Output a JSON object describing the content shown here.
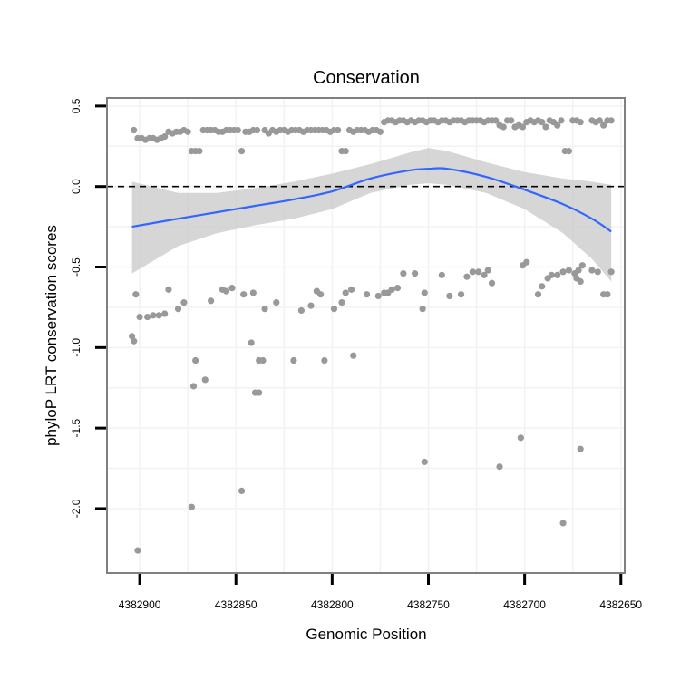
{
  "chart_data": {
    "type": "scatter",
    "title": "Conservation",
    "xlabel": "Genomic Position",
    "ylabel": "phyloP LRT conservation scores",
    "x_reversed": true,
    "xlim": [
      4382917,
      4382648
    ],
    "ylim": [
      -2.4,
      0.55
    ],
    "x_ticks": [
      4382900,
      4382850,
      4382800,
      4382750,
      4382700,
      4382650
    ],
    "x_tick_labels": [
      "4382900",
      "4382850",
      "4382800",
      "4382750",
      "4382700",
      "4382650"
    ],
    "y_ticks": [
      0.5,
      0.0,
      -0.5,
      -1.0,
      -1.5,
      -2.0
    ],
    "y_tick_labels": [
      "0.5",
      "0.0",
      "-0.5",
      "-1.0",
      "-1.5",
      "-2.0"
    ],
    "reference_line": {
      "y": 0.0,
      "style": "dashed"
    },
    "grid": true,
    "colors": {
      "points": "#999999",
      "smooth_line": "#3366ff",
      "ribbon": "#c8c8c8",
      "panel_border": "#808080",
      "grid": "#f2f2f2"
    },
    "series": [
      {
        "name": "phyloP scores",
        "points": [
          [
            4382903,
            0.35
          ],
          [
            4382901,
            0.3
          ],
          [
            4382899,
            0.3
          ],
          [
            4382897,
            0.29
          ],
          [
            4382895,
            0.3
          ],
          [
            4382893,
            0.3
          ],
          [
            4382891,
            0.29
          ],
          [
            4382889,
            0.3
          ],
          [
            4382887,
            0.31
          ],
          [
            4382885,
            0.34
          ],
          [
            4382883,
            0.33
          ],
          [
            4382881,
            0.34
          ],
          [
            4382879,
            0.34
          ],
          [
            4382877,
            0.35
          ],
          [
            4382875,
            0.34
          ],
          [
            4382873,
            0.22
          ],
          [
            4382871,
            0.22
          ],
          [
            4382869,
            0.22
          ],
          [
            4382867,
            0.35
          ],
          [
            4382865,
            0.35
          ],
          [
            4382863,
            0.35
          ],
          [
            4382861,
            0.35
          ],
          [
            4382859,
            0.34
          ],
          [
            4382857,
            0.34
          ],
          [
            4382855,
            0.35
          ],
          [
            4382853,
            0.35
          ],
          [
            4382851,
            0.35
          ],
          [
            4382849,
            0.35
          ],
          [
            4382847,
            0.22
          ],
          [
            4382845,
            0.34
          ],
          [
            4382843,
            0.34
          ],
          [
            4382841,
            0.35
          ],
          [
            4382839,
            0.35
          ],
          [
            4382835,
            0.35
          ],
          [
            4382833,
            0.33
          ],
          [
            4382831,
            0.35
          ],
          [
            4382829,
            0.34
          ],
          [
            4382827,
            0.35
          ],
          [
            4382825,
            0.35
          ],
          [
            4382823,
            0.34
          ],
          [
            4382821,
            0.35
          ],
          [
            4382819,
            0.35
          ],
          [
            4382817,
            0.35
          ],
          [
            4382815,
            0.34
          ],
          [
            4382813,
            0.35
          ],
          [
            4382811,
            0.35
          ],
          [
            4382809,
            0.35
          ],
          [
            4382807,
            0.35
          ],
          [
            4382805,
            0.35
          ],
          [
            4382803,
            0.35
          ],
          [
            4382801,
            0.34
          ],
          [
            4382799,
            0.35
          ],
          [
            4382797,
            0.35
          ],
          [
            4382795,
            0.22
          ],
          [
            4382793,
            0.22
          ],
          [
            4382791,
            0.35
          ],
          [
            4382789,
            0.34
          ],
          [
            4382787,
            0.35
          ],
          [
            4382785,
            0.35
          ],
          [
            4382783,
            0.35
          ],
          [
            4382781,
            0.34
          ],
          [
            4382779,
            0.35
          ],
          [
            4382777,
            0.35
          ],
          [
            4382775,
            0.34
          ],
          [
            4382773,
            0.4
          ],
          [
            4382771,
            0.41
          ],
          [
            4382769,
            0.41
          ],
          [
            4382767,
            0.4
          ],
          [
            4382765,
            0.41
          ],
          [
            4382763,
            0.41
          ],
          [
            4382761,
            0.4
          ],
          [
            4382759,
            0.41
          ],
          [
            4382757,
            0.4
          ],
          [
            4382755,
            0.41
          ],
          [
            4382753,
            0.41
          ],
          [
            4382751,
            0.4
          ],
          [
            4382749,
            0.41
          ],
          [
            4382747,
            0.41
          ],
          [
            4382745,
            0.4
          ],
          [
            4382743,
            0.41
          ],
          [
            4382741,
            0.41
          ],
          [
            4382739,
            0.4
          ],
          [
            4382737,
            0.41
          ],
          [
            4382735,
            0.41
          ],
          [
            4382733,
            0.41
          ],
          [
            4382731,
            0.4
          ],
          [
            4382729,
            0.41
          ],
          [
            4382727,
            0.41
          ],
          [
            4382725,
            0.41
          ],
          [
            4382723,
            0.41
          ],
          [
            4382721,
            0.4
          ],
          [
            4382719,
            0.41
          ],
          [
            4382717,
            0.41
          ],
          [
            4382715,
            0.41
          ],
          [
            4382713,
            0.38
          ],
          [
            4382711,
            0.37
          ],
          [
            4382709,
            0.41
          ],
          [
            4382707,
            0.41
          ],
          [
            4382705,
            0.37
          ],
          [
            4382703,
            0.38
          ],
          [
            4382701,
            0.37
          ],
          [
            4382699,
            0.4
          ],
          [
            4382697,
            0.41
          ],
          [
            4382695,
            0.4
          ],
          [
            4382693,
            0.41
          ],
          [
            4382691,
            0.4
          ],
          [
            4382689,
            0.37
          ],
          [
            4382687,
            0.41
          ],
          [
            4382685,
            0.4
          ],
          [
            4382683,
            0.38
          ],
          [
            4382681,
            0.41
          ],
          [
            4382679,
            0.22
          ],
          [
            4382677,
            0.22
          ],
          [
            4382675,
            0.41
          ],
          [
            4382673,
            0.41
          ],
          [
            4382671,
            0.4
          ],
          [
            4382665,
            0.41
          ],
          [
            4382663,
            0.4
          ],
          [
            4382661,
            0.41
          ],
          [
            4382659,
            0.38
          ],
          [
            4382657,
            0.41
          ],
          [
            4382655,
            0.41
          ],
          [
            4382904,
            -0.93
          ],
          [
            4382903,
            -0.96
          ],
          [
            4382902,
            -0.67
          ],
          [
            4382901,
            -2.26
          ],
          [
            4382900,
            -0.81
          ],
          [
            4382896,
            -0.81
          ],
          [
            4382893,
            -0.8
          ],
          [
            4382890,
            -0.8
          ],
          [
            4382887,
            -0.79
          ],
          [
            4382885,
            -0.64
          ],
          [
            4382880,
            -0.76
          ],
          [
            4382877,
            -0.72
          ],
          [
            4382873,
            -1.99
          ],
          [
            4382871,
            -1.08
          ],
          [
            4382872,
            -1.24
          ],
          [
            4382866,
            -1.2
          ],
          [
            4382863,
            -0.71
          ],
          [
            4382857,
            -0.64
          ],
          [
            4382855,
            -0.65
          ],
          [
            4382852,
            -0.63
          ],
          [
            4382847,
            -1.89
          ],
          [
            4382846,
            -0.67
          ],
          [
            4382842,
            -0.97
          ],
          [
            4382841,
            -0.66
          ],
          [
            4382838,
            -1.08
          ],
          [
            4382836,
            -1.08
          ],
          [
            4382835,
            -0.76
          ],
          [
            4382838,
            -1.28
          ],
          [
            4382840,
            -1.28
          ],
          [
            4382829,
            -0.72
          ],
          [
            4382820,
            -1.08
          ],
          [
            4382816,
            -0.77
          ],
          [
            4382811,
            -0.74
          ],
          [
            4382808,
            -0.65
          ],
          [
            4382806,
            -0.67
          ],
          [
            4382804,
            -1.08
          ],
          [
            4382799,
            -0.76
          ],
          [
            4382795,
            -0.72
          ],
          [
            4382793,
            -0.66
          ],
          [
            4382789,
            -1.05
          ],
          [
            4382790,
            -0.64
          ],
          [
            4382782,
            -0.67
          ],
          [
            4382776,
            -0.68
          ],
          [
            4382773,
            -0.66
          ],
          [
            4382771,
            -0.66
          ],
          [
            4382769,
            -0.64
          ],
          [
            4382766,
            -0.63
          ],
          [
            4382763,
            -0.54
          ],
          [
            4382757,
            -0.54
          ],
          [
            4382753,
            -0.76
          ],
          [
            4382752,
            -0.66
          ],
          [
            4382752,
            -1.71
          ],
          [
            4382743,
            -0.55
          ],
          [
            4382739,
            -0.68
          ],
          [
            4382733,
            -0.67
          ],
          [
            4382730,
            -0.56
          ],
          [
            4382727,
            -0.53
          ],
          [
            4382724,
            -0.53
          ],
          [
            4382721,
            -0.55
          ],
          [
            4382719,
            -0.52
          ],
          [
            4382717,
            -0.6
          ],
          [
            4382713,
            -1.74
          ],
          [
            4382701,
            -0.49
          ],
          [
            4382702,
            -1.56
          ],
          [
            4382699,
            -0.47
          ],
          [
            4382693,
            -0.67
          ],
          [
            4382691,
            -0.62
          ],
          [
            4382688,
            -0.57
          ],
          [
            4382686,
            -0.55
          ],
          [
            4382683,
            -0.55
          ],
          [
            4382680,
            -0.53
          ],
          [
            4382677,
            -0.52
          ],
          [
            4382674,
            -0.54
          ],
          [
            4382672,
            -0.52
          ],
          [
            4382680,
            -2.09
          ],
          [
            4382673,
            -0.57
          ],
          [
            4382671,
            -1.63
          ],
          [
            4382670,
            -0.49
          ],
          [
            4382671,
            -0.59
          ],
          [
            4382665,
            -0.52
          ],
          [
            4382662,
            -0.53
          ],
          [
            4382659,
            -0.67
          ],
          [
            4382657,
            -0.67
          ],
          [
            4382655,
            -0.53
          ]
        ]
      }
    ],
    "smooth": {
      "method": "loess",
      "x": [
        4382904,
        4382880,
        4382860,
        4382840,
        4382820,
        4382800,
        4382780,
        4382760,
        4382750,
        4382740,
        4382720,
        4382700,
        4382680,
        4382665,
        4382655
      ],
      "y": [
        -0.25,
        -0.2,
        -0.16,
        -0.12,
        -0.08,
        -0.03,
        0.05,
        0.1,
        0.11,
        0.11,
        0.06,
        -0.02,
        -0.11,
        -0.2,
        -0.28
      ],
      "lower": [
        -0.54,
        -0.37,
        -0.29,
        -0.24,
        -0.2,
        -0.14,
        -0.04,
        0.01,
        0.02,
        0.01,
        -0.04,
        -0.14,
        -0.29,
        -0.45,
        -0.59
      ],
      "upper": [
        0.03,
        -0.04,
        -0.04,
        -0.01,
        0.03,
        0.08,
        0.14,
        0.21,
        0.24,
        0.22,
        0.15,
        0.09,
        0.05,
        0.03,
        0.01
      ]
    }
  }
}
